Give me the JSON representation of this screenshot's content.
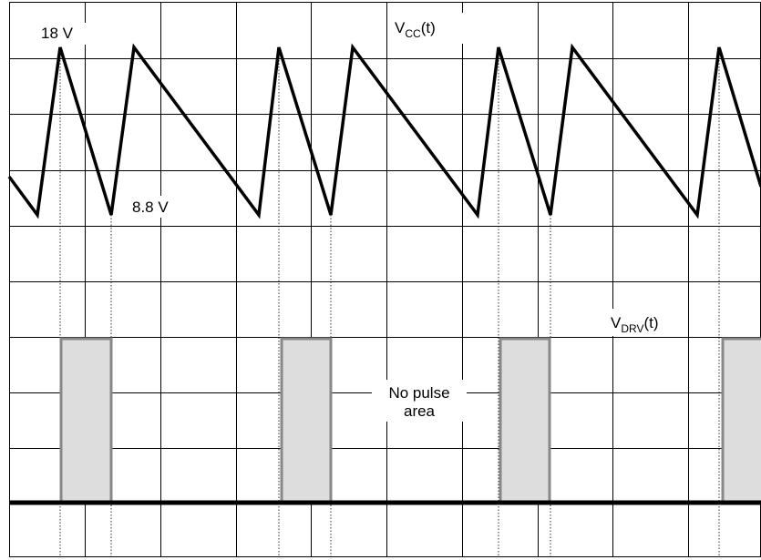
{
  "signals": {
    "vcc": {
      "name": "V",
      "sub": "CC",
      "suffix": "(t)"
    },
    "vdrv": {
      "name": "V",
      "sub": "DRV",
      "suffix": "(t)"
    }
  },
  "annotations": {
    "peak": "18 V",
    "valley": "8.8 V",
    "no_pulse_line1": "No pulse",
    "no_pulse_line2": "area"
  },
  "chart_data": {
    "type": "line",
    "series": [
      {
        "values_volts": {
          "peak": 18,
          "valley": 8.8
        }
      }
    ],
    "grid": true,
    "ylim": [
      8.8,
      18
    ]
  },
  "colors": {
    "grid": "#000000",
    "trace": "#000000",
    "pulse_fill": "#dddddd",
    "pulse_stroke": "#888888"
  }
}
